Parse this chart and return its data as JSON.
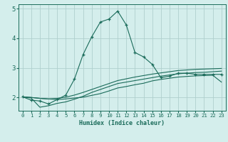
{
  "xlabel": "Humidex (Indice chaleur)",
  "bg_color": "#d4eeec",
  "grid_color": "#afd0ce",
  "line_color": "#1a6b5a",
  "xlim": [
    -0.5,
    23.5
  ],
  "ylim": [
    1.55,
    5.15
  ],
  "yticks": [
    2,
    3,
    4,
    5
  ],
  "xticks": [
    0,
    1,
    2,
    3,
    4,
    5,
    6,
    7,
    8,
    9,
    10,
    11,
    12,
    13,
    14,
    15,
    16,
    17,
    18,
    19,
    20,
    21,
    22,
    23
  ],
  "curve1_x": [
    0,
    1,
    2,
    3,
    4,
    5,
    6,
    7,
    8,
    9,
    10,
    11,
    12,
    13,
    14,
    15,
    16,
    17,
    18,
    19,
    20,
    21,
    22,
    23
  ],
  "curve1_y": [
    2.02,
    1.91,
    1.88,
    1.78,
    1.93,
    2.08,
    2.62,
    3.45,
    4.05,
    4.55,
    4.65,
    4.92,
    4.45,
    3.52,
    3.37,
    3.12,
    2.67,
    2.72,
    2.82,
    2.82,
    2.78,
    2.78,
    2.78,
    2.78
  ],
  "curve2_x": [
    0,
    1,
    2,
    3,
    4,
    5,
    6,
    7,
    8,
    9,
    10,
    11,
    12,
    13,
    14,
    15,
    16,
    17,
    18,
    19,
    20,
    21,
    22,
    23
  ],
  "curve2_y": [
    2.02,
    2.0,
    1.97,
    1.95,
    1.97,
    2.01,
    2.08,
    2.17,
    2.27,
    2.37,
    2.47,
    2.57,
    2.63,
    2.69,
    2.74,
    2.79,
    2.83,
    2.87,
    2.91,
    2.93,
    2.95,
    2.96,
    2.97,
    2.98
  ],
  "curve3_x": [
    0,
    1,
    2,
    3,
    4,
    5,
    6,
    7,
    8,
    9,
    10,
    11,
    12,
    13,
    14,
    15,
    16,
    17,
    18,
    19,
    20,
    21,
    22,
    23
  ],
  "curve3_y": [
    2.02,
    2.0,
    1.97,
    1.95,
    1.93,
    1.95,
    1.98,
    2.01,
    2.07,
    2.13,
    2.22,
    2.32,
    2.37,
    2.43,
    2.48,
    2.56,
    2.61,
    2.65,
    2.69,
    2.71,
    2.73,
    2.74,
    2.75,
    2.52
  ],
  "curve4_x": [
    0,
    1,
    2,
    3,
    4,
    5,
    6,
    7,
    8,
    9,
    10,
    11,
    12,
    13,
    14,
    15,
    16,
    17,
    18,
    19,
    20,
    21,
    22,
    23
  ],
  "curve4_y": [
    2.02,
    1.98,
    1.67,
    1.72,
    1.8,
    1.85,
    1.94,
    2.04,
    2.17,
    2.27,
    2.37,
    2.47,
    2.52,
    2.57,
    2.62,
    2.67,
    2.72,
    2.76,
    2.8,
    2.82,
    2.84,
    2.85,
    2.87,
    2.89
  ]
}
